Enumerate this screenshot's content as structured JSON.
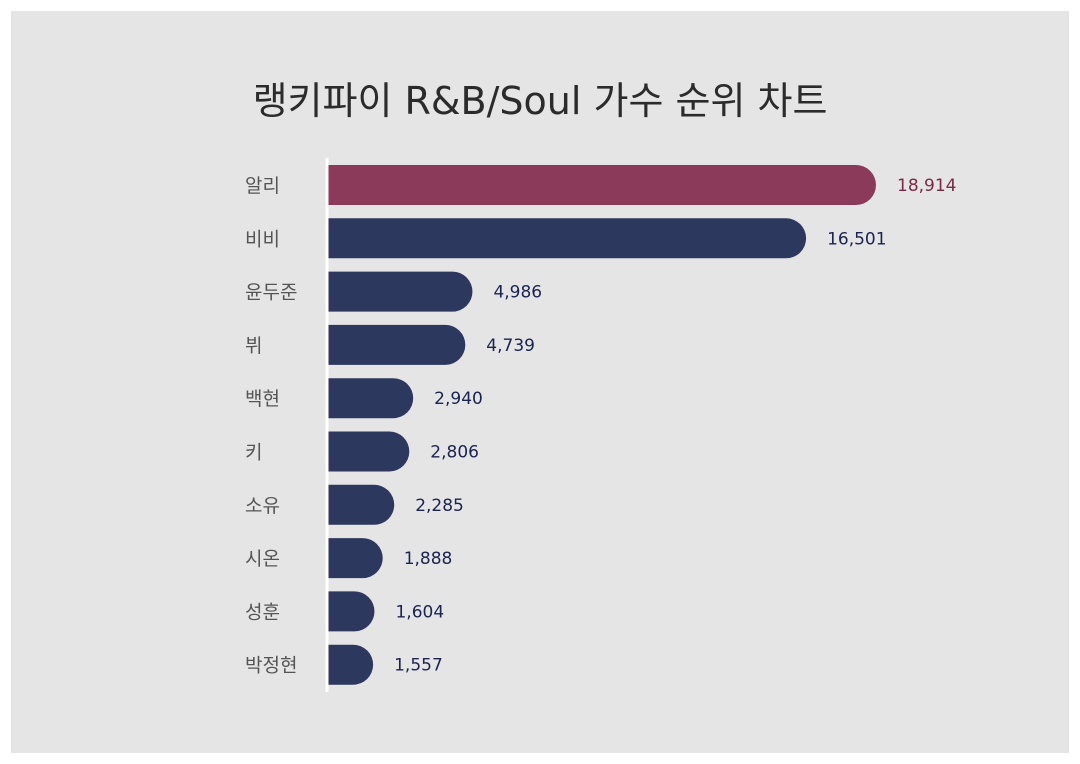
{
  "chart_data": {
    "type": "bar",
    "orientation": "horizontal",
    "title": "랭키파이 R&B/Soul 가수 순위 차트",
    "categories": [
      "알리",
      "비비",
      "윤두준",
      "뷔",
      "백현",
      "키",
      "소유",
      "시온",
      "성훈",
      "박정현"
    ],
    "values": [
      18914,
      16501,
      4986,
      4739,
      2940,
      2806,
      2285,
      1888,
      1604,
      1557
    ],
    "value_labels": [
      "18,914",
      "16,501",
      "4,986",
      "4,739",
      "2,940",
      "2,806",
      "2,285",
      "1,888",
      "1,604",
      "1,557"
    ],
    "highlight_index": 0,
    "xlim": [
      0,
      18914
    ],
    "grid": false,
    "legend": "none"
  },
  "colors": {
    "background": "#e5e5e6",
    "highlight_bar": "#8b3a5a",
    "highlight_label": "#7a2a46",
    "bar": "#2c385e",
    "value_label": "#1b2350",
    "category_label": "#555555",
    "axis_line": "#ffffff"
  }
}
